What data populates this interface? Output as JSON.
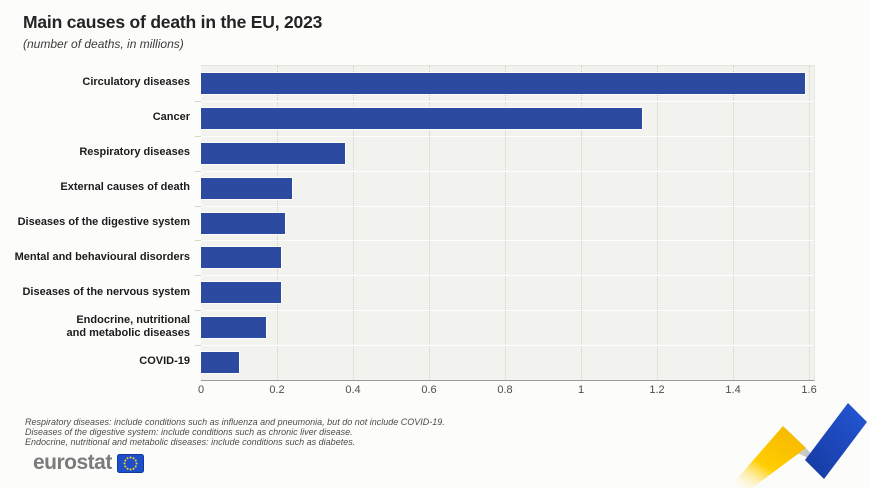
{
  "header": {
    "title": "Main causes of death in the EU, 2023",
    "subtitle": "(number of deaths, in millions)"
  },
  "chart_data": {
    "type": "bar",
    "orientation": "horizontal",
    "title": "Main causes of death in the EU, 2023",
    "xlabel": "number of deaths, in millions",
    "ylabel": "",
    "categories": [
      "Circulatory diseases",
      "Cancer",
      "Respiratory diseases",
      "External causes of death",
      "Diseases of the digestive system",
      "Mental and behavioural disorders",
      "Diseases of the nervous system",
      "Endocrine, nutritional\nand metabolic diseases",
      "COVID-19"
    ],
    "values": [
      1.59,
      1.16,
      0.38,
      0.24,
      0.22,
      0.21,
      0.21,
      0.17,
      0.1
    ],
    "xlim": [
      0,
      1.613
    ],
    "ticks": [
      {
        "value": 0,
        "label": "0"
      },
      {
        "value": 0.2,
        "label": "0.2"
      },
      {
        "value": 0.4,
        "label": "0.4"
      },
      {
        "value": 0.6,
        "label": "0.6"
      },
      {
        "value": 0.8,
        "label": "0.8"
      },
      {
        "value": 1,
        "label": "1"
      },
      {
        "value": 1.2,
        "label": "1.2"
      },
      {
        "value": 1.4,
        "label": "1.4"
      },
      {
        "value": 1.6,
        "label": "1.6"
      }
    ],
    "grid": true,
    "legend": "none",
    "bar_color": "#2b4aa0"
  },
  "footnotes": {
    "lines": [
      "Respiratory diseases: include conditions such as influenza and pneumonia, but do not include COVID-19.",
      "Diseases of the digestive system: include conditions such as chronic liver disease.",
      "Endocrine, nutritional and metabolic diseases: include conditions such as diabetes."
    ]
  },
  "footer": {
    "logo_text": "eurostat"
  },
  "colors": {
    "bar": "#2b4aa0",
    "plot_background": "#f2f2ee",
    "gridline": "#d6cfc0",
    "axis_line": "#9b9b9b",
    "logo_gray": "#7b7b7b",
    "flag_blue": "#1d4fca",
    "star_gold": "#ffd617",
    "ribbon_yellow": "#fdc600",
    "ribbon_blue": "#1f50cc"
  }
}
